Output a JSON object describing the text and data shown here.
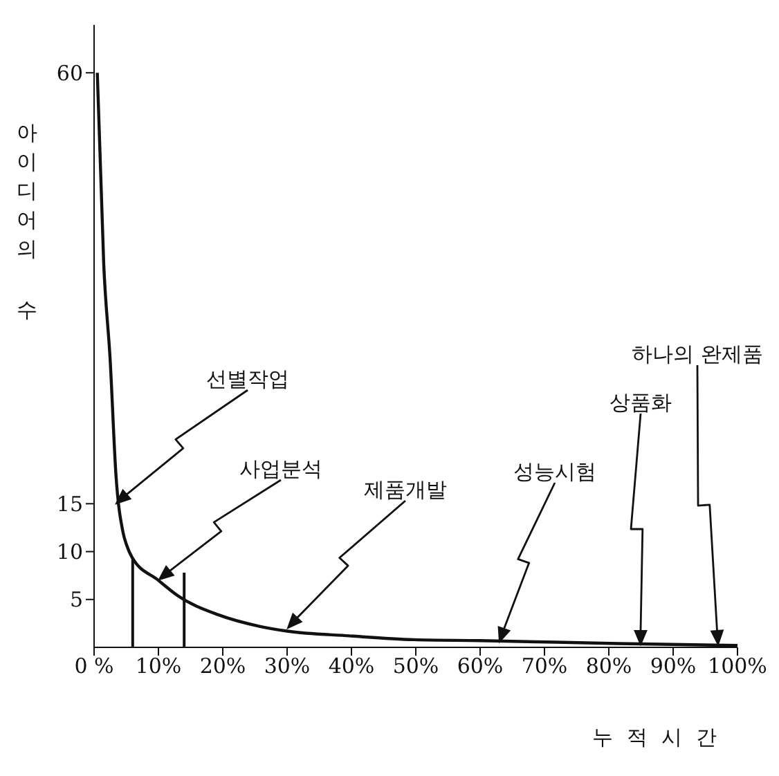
{
  "chart_data": {
    "type": "line",
    "xlabel": "누적시간",
    "ylabel": "아이디어의 수",
    "x": [
      0.5,
      1.5,
      2.5,
      3.4,
      4.5,
      5.1,
      5.9,
      10,
      13,
      19.3,
      25.7,
      30,
      39.7,
      49.7,
      60,
      81.5,
      100
    ],
    "series": [
      {
        "color": "#111111",
        "values": [
          60,
          40,
          30,
          18,
          12,
          10.6,
          9.4,
          7,
          5.4,
          3.4,
          2.2,
          1.7,
          1.2,
          0.8,
          0.7,
          0.4,
          0.2
        ]
      }
    ],
    "xlim": [
      0,
      100
    ],
    "xticks": [
      {
        "value": 0,
        "label": "0 %"
      },
      {
        "value": 10,
        "label": "10%"
      },
      {
        "value": 20,
        "label": "20%"
      },
      {
        "value": 30,
        "label": "30%"
      },
      {
        "value": 40,
        "label": "40%"
      },
      {
        "value": 50,
        "label": "50%"
      },
      {
        "value": 60,
        "label": "60%"
      },
      {
        "value": 70,
        "label": "70%"
      },
      {
        "value": 80,
        "label": "80%"
      },
      {
        "value": 90,
        "label": "90%"
      },
      {
        "value": 100,
        "label": "100%"
      }
    ],
    "ylim": [
      0,
      65
    ],
    "yticks": [
      5,
      10,
      15,
      60
    ],
    "ref_lines": [
      {
        "axis": "x",
        "value": 6,
        "color": "#111111"
      },
      {
        "axis": "x",
        "value": 14,
        "color": "#111111"
      }
    ],
    "annotations": [
      "선별작업",
      "사업분석",
      "제품개발",
      "성능시험",
      "상품화",
      "하나의 완제품"
    ],
    "marker": "none",
    "line_style": "solid",
    "grid": false,
    "legend": false
  }
}
